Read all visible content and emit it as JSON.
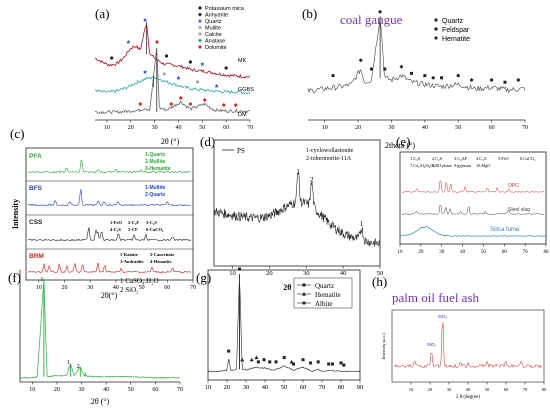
{
  "chart_data": [
    {
      "panel": "(a)",
      "type": "line",
      "xlabel": "2θ (°)",
      "xlim": [
        5,
        70
      ],
      "xticks": [
        10,
        20,
        30,
        40,
        50,
        60,
        70
      ],
      "legend": [
        "Potassium mica",
        "Anhydrite",
        "Quartz",
        "Mullite",
        "Calcite",
        "Anatase",
        "Dolomite"
      ],
      "legend_colors": [
        "#222222",
        "#222222",
        "#3355cc",
        "#aaaaaa",
        "#aaaaaa",
        "#22aa55",
        "#dd2222"
      ],
      "series": [
        {
          "name": "MK",
          "color": "#aa1122",
          "x": [
            5,
            8,
            11,
            14,
            17,
            20,
            22,
            24,
            26.6,
            28,
            31,
            34,
            38,
            42,
            46,
            50,
            55,
            60,
            65,
            70
          ],
          "y": [
            0.62,
            0.58,
            0.55,
            0.56,
            0.62,
            0.72,
            0.74,
            0.7,
            0.98,
            0.66,
            0.6,
            0.56,
            0.55,
            0.53,
            0.5,
            0.49,
            0.47,
            0.45,
            0.44,
            0.43
          ]
        },
        {
          "name": "GGBS",
          "color": "#33aaaa",
          "x": [
            5,
            8,
            11,
            14,
            18,
            22,
            26,
            29.5,
            31,
            34,
            38,
            42,
            46,
            50,
            55,
            60,
            65,
            70
          ],
          "y": [
            0.3,
            0.28,
            0.28,
            0.29,
            0.32,
            0.37,
            0.41,
            0.43,
            0.42,
            0.39,
            0.36,
            0.33,
            0.31,
            0.3,
            0.29,
            0.28,
            0.28,
            0.27
          ]
        },
        {
          "name": "DM",
          "color": "#666666",
          "x": [
            5,
            10,
            15,
            20,
            24,
            26,
            28,
            30.9,
            32,
            35,
            41,
            45,
            51,
            55,
            60,
            65,
            70
          ],
          "y": [
            0.08,
            0.08,
            0.08,
            0.09,
            0.1,
            0.12,
            0.1,
            0.72,
            0.12,
            0.1,
            0.18,
            0.11,
            0.16,
            0.1,
            0.09,
            0.09,
            0.09
          ]
        }
      ],
      "series_labels": [
        "MK",
        "GGBS",
        "DM"
      ]
    },
    {
      "panel": "(b)",
      "type": "line",
      "title": "coal gangue",
      "xlabel": "2theta (°)",
      "xlim": [
        5,
        70
      ],
      "xticks": [
        10,
        20,
        30,
        40,
        50,
        60,
        70
      ],
      "legend": [
        "Quartz",
        "Feldspar",
        "Hematite"
      ],
      "series": [
        {
          "name": "",
          "x": [
            5,
            10,
            15,
            18,
            20.8,
            22,
            24,
            26.6,
            28,
            30,
            33,
            36,
            40,
            45,
            50,
            55,
            60,
            65,
            70
          ],
          "y": [
            0.3,
            0.32,
            0.34,
            0.36,
            0.5,
            0.38,
            0.4,
            0.98,
            0.42,
            0.4,
            0.44,
            0.38,
            0.36,
            0.34,
            0.36,
            0.32,
            0.33,
            0.31,
            0.32
          ]
        }
      ]
    },
    {
      "panel": "(c)",
      "type": "line",
      "xlabel": "2θ(°)",
      "ylabel": "Intensity",
      "xlim": [
        5,
        70
      ],
      "xticks": [
        10,
        20,
        30,
        40,
        50,
        60,
        70
      ],
      "sample_labels": [
        "PFA",
        "BFS",
        "CSS",
        "BRM"
      ],
      "sample_colors": [
        "#22aa33",
        "#2244cc",
        "#222222",
        "#cc2222"
      ],
      "phase_legends": [
        [
          "1-Quartz",
          "2-Mullite",
          "3-Hematite"
        ],
        [
          "1-Mullite",
          "2-Quartz"
        ],
        [
          "1-FeO",
          "2-C₂F",
          "3-C₂S",
          "4-C₃S",
          "5-CF",
          "6-CaCO₃"
        ],
        [
          "1-Kaioite",
          "2-Cancrinite",
          "3-Andradite",
          "4-Hematite"
        ]
      ]
    },
    {
      "panel": "(d)",
      "type": "line",
      "xlabel": "2θ [deg]",
      "xlim": [
        5,
        50
      ],
      "xticks": [
        10,
        20,
        30,
        40,
        50
      ],
      "legend": [
        "PS"
      ],
      "phase_notes": [
        "1-cyclowollastonite",
        "2-tobermorite-11A"
      ],
      "peak_labels": [
        "1",
        "2",
        "1"
      ]
    },
    {
      "panel": "(e)",
      "type": "line",
      "xlim": [
        10,
        80
      ],
      "xticks": [
        10,
        20,
        30,
        40,
        50,
        60,
        70,
        80
      ],
      "phase_notes": [
        "1.C₃S",
        "2.C₂S",
        "3.C₄AF",
        "4.C₃A",
        "5.FeO",
        "6.CaCO₃",
        "7.Ca₂Al₂Si₂O₇",
        "8.RO phase",
        "9.gypsum",
        "10.MgO"
      ],
      "series_labels": [
        "OPC",
        "Steel slag",
        "Silica fume"
      ],
      "series_colors": [
        "#dd3333",
        "#444444",
        "#3388cc"
      ]
    },
    {
      "panel": "(f)",
      "type": "line",
      "xlabel": "2θ (°)",
      "xlim": [
        5,
        70
      ],
      "xticks": [
        10,
        20,
        30,
        40,
        50,
        60,
        70
      ],
      "phase_notes": [
        "1 CaSO₄.H₂O",
        "2 SiO₂"
      ],
      "peak_labels": [
        "1",
        "1",
        "2"
      ],
      "series": [
        {
          "name": "",
          "color": "#33aa44",
          "x": [
            5,
            10,
            12,
            14.7,
            16,
            20,
            24,
            25.5,
            27,
            29.5,
            31,
            35,
            40,
            50,
            60,
            70
          ],
          "y": [
            0.02,
            0.02,
            0.03,
            0.92,
            0.03,
            0.04,
            0.04,
            0.15,
            0.04,
            0.12,
            0.04,
            0.03,
            0.03,
            0.03,
            0.02,
            0.02
          ]
        }
      ]
    },
    {
      "panel": "(g)",
      "type": "line",
      "xlim": [
        10,
        90
      ],
      "xticks": [
        10,
        20,
        30,
        40,
        50,
        60,
        70,
        80,
        90
      ],
      "legend": [
        "Quartz",
        "Hematite",
        "Albite"
      ],
      "series": [
        {
          "name": "",
          "x": [
            10,
            15,
            20,
            21,
            22,
            25,
            26.6,
            28,
            30,
            35,
            40,
            45,
            50,
            55,
            60,
            65,
            68,
            70,
            75,
            80,
            85,
            90
          ],
          "y": [
            0.08,
            0.08,
            0.09,
            0.2,
            0.09,
            0.1,
            0.98,
            0.1,
            0.09,
            0.12,
            0.11,
            0.09,
            0.13,
            0.09,
            0.12,
            0.08,
            0.1,
            0.08,
            0.09,
            0.08,
            0.08,
            0.08
          ]
        }
      ]
    },
    {
      "panel": "(h)",
      "type": "line",
      "title": "palm oil fuel ash",
      "xlabel": "2 θ (degree)",
      "ylabel": "Intensity (a.u.)",
      "xlim": [
        0,
        80
      ],
      "xticks": [
        10,
        20,
        30,
        40,
        50,
        60,
        70,
        80
      ],
      "peak_labels": [
        "SiO₂",
        "SiO₂"
      ]
    }
  ]
}
